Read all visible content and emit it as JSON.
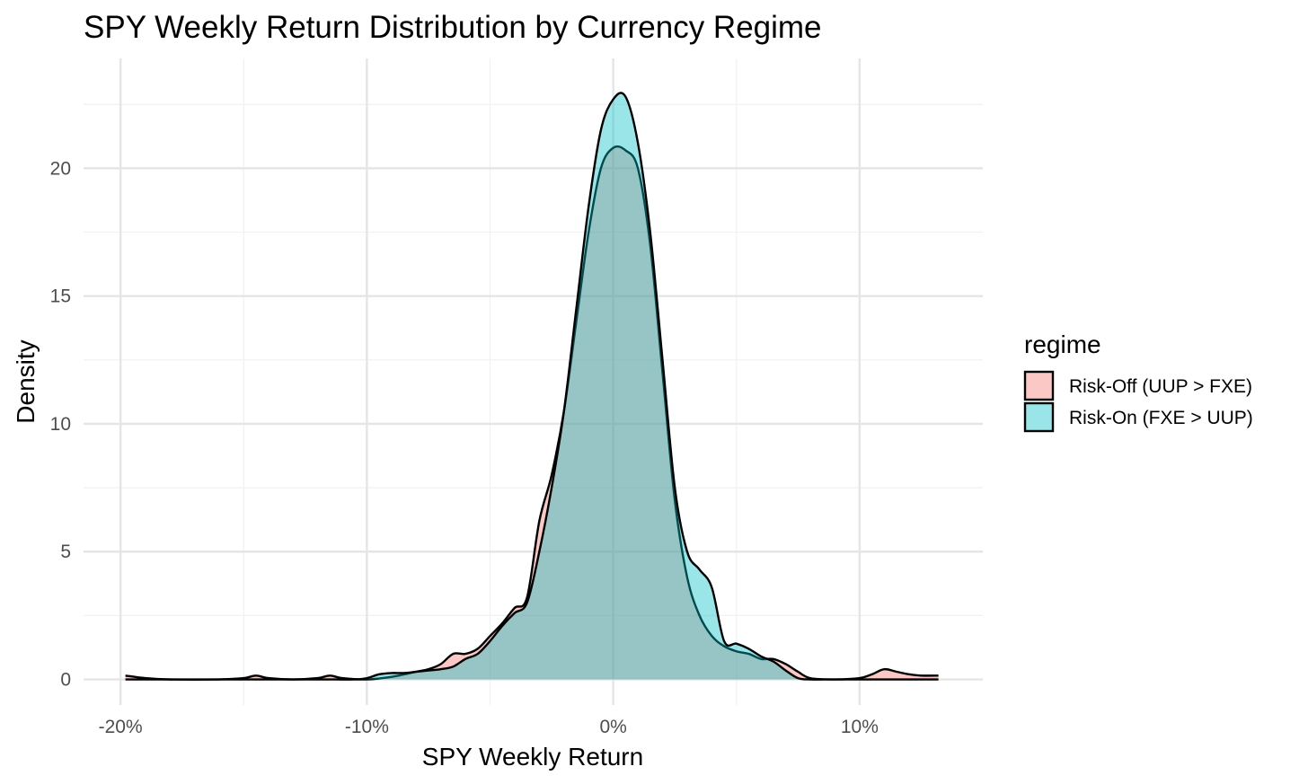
{
  "chart_data": {
    "type": "area",
    "title": "SPY Weekly Return Distribution by Currency Regime",
    "xlabel": "SPY Weekly Return",
    "ylabel": "Density",
    "xlim": [
      -0.215,
      0.15
    ],
    "ylim": [
      -1.0,
      24.3
    ],
    "x_ticks": [
      -0.2,
      -0.1,
      0.0,
      0.1
    ],
    "x_tick_labels": [
      "-20%",
      "-10%",
      "0%",
      "10%"
    ],
    "y_ticks": [
      0,
      5,
      10,
      15,
      20
    ],
    "y_tick_labels": [
      "0",
      "5",
      "10",
      "15",
      "20"
    ],
    "grid": true,
    "legend": {
      "title": "regime",
      "position": "right",
      "entries": [
        "Risk-Off (UUP > FXE)",
        "Risk-On (FXE > UUP)"
      ]
    },
    "series": [
      {
        "name": "Risk-Off (UUP > FXE)",
        "color": "#F8766D",
        "x": [
          -0.198,
          -0.19,
          -0.18,
          -0.16,
          -0.15,
          -0.145,
          -0.14,
          -0.13,
          -0.12,
          -0.115,
          -0.11,
          -0.1,
          -0.09,
          -0.08,
          -0.075,
          -0.07,
          -0.065,
          -0.06,
          -0.055,
          -0.05,
          -0.045,
          -0.04,
          -0.035,
          -0.03,
          -0.025,
          -0.02,
          -0.015,
          -0.01,
          -0.005,
          0.0,
          0.005,
          0.01,
          0.015,
          0.02,
          0.025,
          0.03,
          0.035,
          0.04,
          0.045,
          0.05,
          0.055,
          0.06,
          0.065,
          0.07,
          0.075,
          0.08,
          0.09,
          0.1,
          0.105,
          0.11,
          0.115,
          0.12,
          0.125,
          0.132
        ],
        "y": [
          0.15,
          0.05,
          0.0,
          0.0,
          0.05,
          0.15,
          0.05,
          0.0,
          0.05,
          0.15,
          0.05,
          0.0,
          0.1,
          0.3,
          0.4,
          0.6,
          1.0,
          1.0,
          1.2,
          1.7,
          2.2,
          2.8,
          3.2,
          6.2,
          8.0,
          10.5,
          14.0,
          17.5,
          20.0,
          20.8,
          20.7,
          20.0,
          17.0,
          12.0,
          7.0,
          4.0,
          2.5,
          1.7,
          1.3,
          1.1,
          1.0,
          0.8,
          0.8,
          0.6,
          0.3,
          0.05,
          0.0,
          0.05,
          0.2,
          0.4,
          0.3,
          0.2,
          0.15,
          0.15
        ]
      },
      {
        "name": "Risk-On (FXE > UUP)",
        "color": "#00BFC4",
        "x": [
          -0.198,
          -0.15,
          -0.12,
          -0.105,
          -0.1,
          -0.095,
          -0.09,
          -0.085,
          -0.08,
          -0.075,
          -0.07,
          -0.065,
          -0.06,
          -0.055,
          -0.05,
          -0.045,
          -0.04,
          -0.035,
          -0.03,
          -0.025,
          -0.02,
          -0.015,
          -0.01,
          -0.005,
          0.0,
          0.005,
          0.01,
          0.015,
          0.02,
          0.025,
          0.03,
          0.035,
          0.04,
          0.045,
          0.05,
          0.055,
          0.06,
          0.065,
          0.07,
          0.075,
          0.08,
          0.09,
          0.1,
          0.11,
          0.12,
          0.132
        ],
        "y": [
          0.0,
          0.0,
          0.0,
          0.0,
          0.05,
          0.2,
          0.25,
          0.25,
          0.3,
          0.35,
          0.4,
          0.5,
          0.8,
          1.0,
          1.5,
          2.1,
          2.6,
          3.0,
          5.0,
          7.5,
          10.5,
          14.5,
          18.5,
          21.5,
          22.7,
          22.8,
          21.0,
          17.5,
          12.5,
          7.5,
          5.0,
          4.3,
          3.6,
          1.5,
          1.4,
          1.2,
          0.9,
          0.7,
          0.35,
          0.05,
          0.0,
          0.0,
          0.0,
          0.0,
          0.0,
          0.0
        ]
      }
    ]
  }
}
